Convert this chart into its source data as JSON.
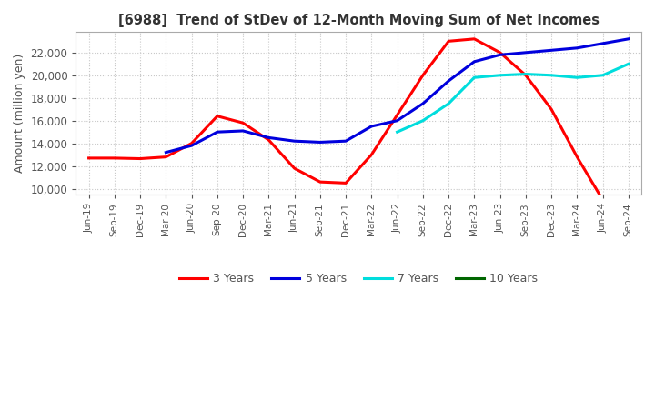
{
  "title": "[6988]  Trend of StDev of 12-Month Moving Sum of Net Incomes",
  "ylabel": "Amount (million yen)",
  "background_color": "#ffffff",
  "grid_color": "#c8c8c8",
  "x_labels": [
    "Jun-19",
    "Sep-19",
    "Dec-19",
    "Mar-20",
    "Jun-20",
    "Sep-20",
    "Dec-20",
    "Mar-21",
    "Jun-21",
    "Sep-21",
    "Dec-21",
    "Mar-22",
    "Jun-22",
    "Sep-22",
    "Dec-22",
    "Mar-23",
    "Jun-23",
    "Sep-23",
    "Dec-23",
    "Mar-24",
    "Jun-24",
    "Sep-24"
  ],
  "ylim": [
    9500,
    23800
  ],
  "yticks": [
    10000,
    12000,
    14000,
    16000,
    18000,
    20000,
    22000
  ],
  "series": [
    {
      "name": "3 Years",
      "color": "#ff0000",
      "values": [
        12700,
        12700,
        12650,
        12800,
        14000,
        16400,
        15800,
        14300,
        11800,
        10600,
        10500,
        13000,
        16500,
        20000,
        23000,
        23200,
        22000,
        20000,
        17000,
        12800,
        9000,
        null
      ]
    },
    {
      "name": "5 Years",
      "color": "#0000dd",
      "values": [
        null,
        null,
        null,
        13200,
        13800,
        15000,
        15100,
        14500,
        14200,
        14100,
        14200,
        15500,
        16000,
        17500,
        19500,
        21200,
        21800,
        22000,
        22200,
        22400,
        22800,
        23200
      ]
    },
    {
      "name": "7 Years",
      "color": "#00dddd",
      "values": [
        null,
        null,
        null,
        null,
        null,
        null,
        null,
        null,
        null,
        null,
        null,
        null,
        15000,
        16000,
        17500,
        19800,
        20000,
        20100,
        20000,
        19800,
        20000,
        21000
      ]
    },
    {
      "name": "10 Years",
      "color": "#006600",
      "values": [
        null,
        null,
        null,
        null,
        null,
        null,
        null,
        null,
        null,
        null,
        null,
        null,
        null,
        null,
        null,
        null,
        null,
        null,
        null,
        null,
        null,
        null
      ]
    }
  ]
}
